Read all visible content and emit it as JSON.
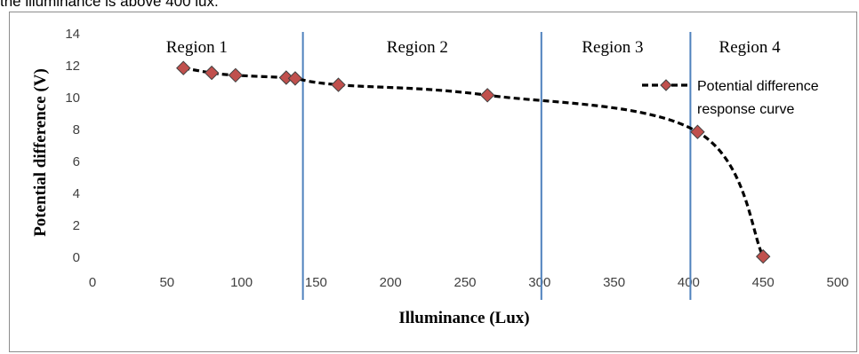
{
  "caption_fragment": "the illuminance is above 400 lux.",
  "chart_data": {
    "type": "scatter",
    "title": "",
    "xlabel": "Illuminance (Lux)",
    "ylabel": "Potential difference  (V)",
    "xlim": [
      0,
      500
    ],
    "ylim": [
      0,
      14
    ],
    "x_ticks": [
      0,
      50,
      100,
      150,
      200,
      250,
      300,
      350,
      400,
      450,
      500
    ],
    "y_ticks": [
      0,
      2,
      4,
      6,
      8,
      10,
      12,
      14
    ],
    "grid": false,
    "legend_position": "right",
    "series": [
      {
        "name": "Potential difference response curve",
        "legend_lines": [
          "Potential difference",
          "response curve"
        ],
        "line_style": "dashed",
        "line_color": "#000000",
        "marker": "diamond",
        "marker_color": "#c0504d",
        "points": [
          {
            "x": 61,
            "y": 11.85
          },
          {
            "x": 80,
            "y": 11.55
          },
          {
            "x": 96,
            "y": 11.4
          },
          {
            "x": 130,
            "y": 11.25
          },
          {
            "x": 136,
            "y": 11.2
          },
          {
            "x": 165,
            "y": 10.8
          },
          {
            "x": 265,
            "y": 10.15
          },
          {
            "x": 406,
            "y": 7.85
          },
          {
            "x": 450,
            "y": 0.05
          }
        ]
      }
    ],
    "vertical_lines": {
      "color": "#4f81bd",
      "x": [
        140,
        300,
        400
      ]
    },
    "regions": [
      {
        "label": "Region 1",
        "x_center": 70
      },
      {
        "label": "Region 2",
        "x_center": 218
      },
      {
        "label": "Region 3",
        "x_center": 349
      },
      {
        "label": "Region 4",
        "x_center": 441
      }
    ]
  }
}
